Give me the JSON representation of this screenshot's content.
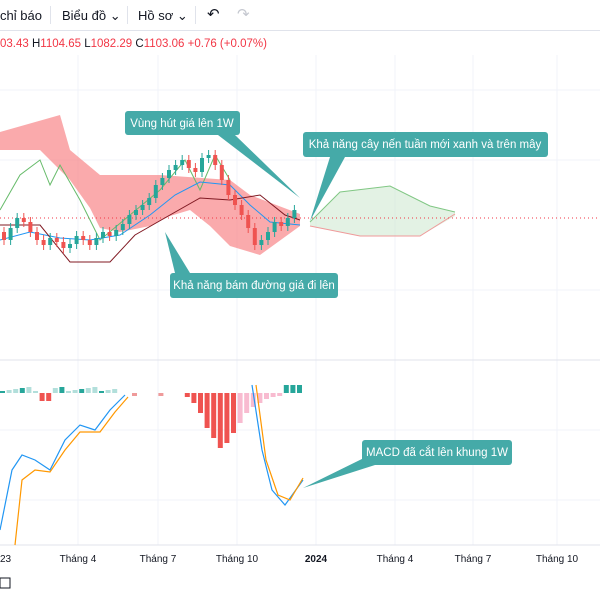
{
  "toolbar": {
    "indicators": "chỉ báo",
    "chart": "Biểu đồ",
    "profile": "Hồ sơ"
  },
  "legend": {
    "open": "03.43",
    "high_label": "H",
    "high": "1104.65",
    "low_label": "L",
    "low": "1082.29",
    "close_label": "C",
    "close": "1103.06",
    "change": "+0.76 (+0.07%)"
  },
  "annotations": [
    "Vùng hút giá lên 1W",
    "Khả năng cây nến tuần mới xanh và trên mây",
    "Khả năng bám đường giá đi lên",
    "MACD đã cắt lên khung 1W"
  ],
  "x_axis": [
    "23",
    "Tháng 4",
    "Tháng 7",
    "Tháng 10",
    "2024",
    "Tháng 4",
    "Tháng 7",
    "Tháng 10"
  ]
}
